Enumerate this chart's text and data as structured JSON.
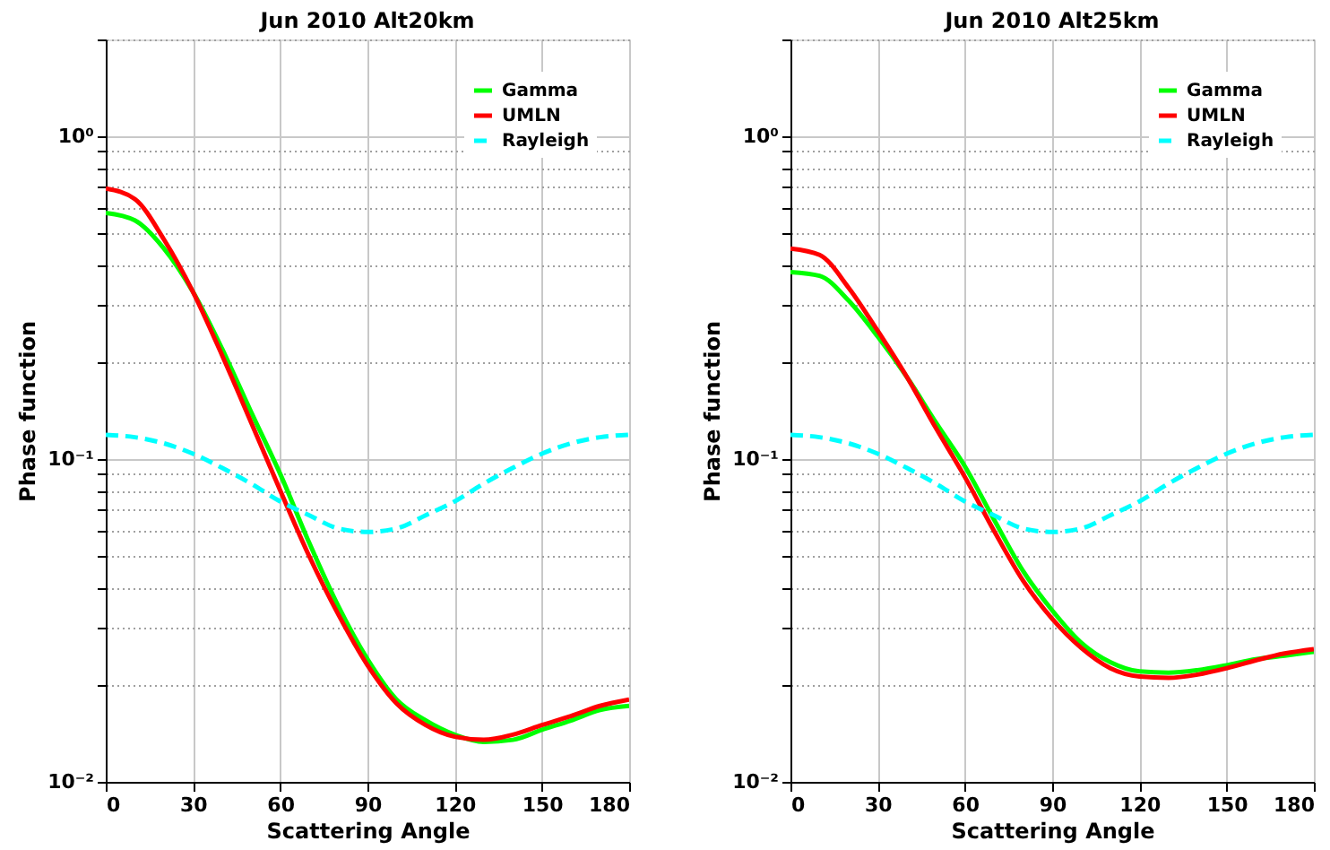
{
  "chart_data": [
    {
      "type": "line",
      "title": "Jun 2010 Alt20km",
      "xlabel": "Scattering Angle",
      "ylabel": "Phase function",
      "log": "y",
      "grid": true,
      "legend": "top right",
      "x": [
        0,
        10,
        20,
        30,
        40,
        50,
        60,
        70,
        80,
        90,
        100,
        110,
        120,
        130,
        140,
        150,
        160,
        170,
        180
      ],
      "xlim": [
        0,
        180
      ],
      "xticks": [
        0,
        30,
        60,
        90,
        120,
        150,
        180
      ],
      "ylim": [
        0.01,
        2
      ],
      "yticks": [
        {
          "value": 0.01,
          "label": "10⁻²"
        },
        {
          "value": 0.02,
          "label": null
        },
        {
          "value": 0.03,
          "label": null
        },
        {
          "value": 0.04,
          "label": null
        },
        {
          "value": 0.05,
          "label": null
        },
        {
          "value": 0.06,
          "label": null
        },
        {
          "value": 0.07,
          "label": null
        },
        {
          "value": 0.08,
          "label": null
        },
        {
          "value": 0.09,
          "label": null
        },
        {
          "value": 0.1,
          "label": "10⁻¹"
        },
        {
          "value": 0.2,
          "label": null
        },
        {
          "value": 0.3,
          "label": null
        },
        {
          "value": 0.4,
          "label": null
        },
        {
          "value": 0.5,
          "label": null
        },
        {
          "value": 0.6,
          "label": null
        },
        {
          "value": 0.7,
          "label": null
        },
        {
          "value": 0.8,
          "label": null
        },
        {
          "value": 0.9,
          "label": null
        },
        {
          "value": 1,
          "label": "10⁰"
        },
        {
          "value": 2,
          "label": null
        }
      ],
      "series": [
        {
          "name": "Gamma",
          "color": "#00ff00",
          "line_style": "solid",
          "values": [
            0.58,
            0.55,
            0.45,
            0.33,
            0.22,
            0.14,
            0.09,
            0.055,
            0.035,
            0.024,
            0.018,
            0.0155,
            0.014,
            0.0133,
            0.0135,
            0.0145,
            0.0155,
            0.0167,
            0.0172
          ]
        },
        {
          "name": "UMLN",
          "color": "#ff0000",
          "line_style": "solid",
          "values": [
            0.69,
            0.64,
            0.48,
            0.33,
            0.21,
            0.13,
            0.08,
            0.05,
            0.033,
            0.023,
            0.0175,
            0.015,
            0.0138,
            0.0135,
            0.014,
            0.015,
            0.016,
            0.0172,
            0.018
          ]
        },
        {
          "name": "Rayleigh",
          "color": "#00ffff",
          "line_style": "dashed",
          "values": [
            0.119,
            0.117,
            0.112,
            0.104,
            0.094,
            0.084,
            0.074,
            0.067,
            0.061,
            0.0595,
            0.061,
            0.067,
            0.074,
            0.084,
            0.094,
            0.104,
            0.112,
            0.117,
            0.119
          ]
        }
      ]
    },
    {
      "type": "line",
      "title": "Jun 2010 Alt25km",
      "xlabel": "Scattering Angle",
      "ylabel": "Phase function",
      "log": "y",
      "grid": true,
      "legend": "top right",
      "x": [
        0,
        10,
        20,
        30,
        40,
        50,
        60,
        70,
        80,
        90,
        100,
        110,
        120,
        130,
        140,
        150,
        160,
        170,
        180
      ],
      "xlim": [
        0,
        180
      ],
      "xticks": [
        0,
        30,
        60,
        90,
        120,
        150,
        180
      ],
      "ylim": [
        0.01,
        2
      ],
      "yticks": [
        {
          "value": 0.01,
          "label": "10⁻²"
        },
        {
          "value": 0.02,
          "label": null
        },
        {
          "value": 0.03,
          "label": null
        },
        {
          "value": 0.04,
          "label": null
        },
        {
          "value": 0.05,
          "label": null
        },
        {
          "value": 0.06,
          "label": null
        },
        {
          "value": 0.07,
          "label": null
        },
        {
          "value": 0.08,
          "label": null
        },
        {
          "value": 0.09,
          "label": null
        },
        {
          "value": 0.1,
          "label": "10⁻¹"
        },
        {
          "value": 0.2,
          "label": null
        },
        {
          "value": 0.3,
          "label": null
        },
        {
          "value": 0.4,
          "label": null
        },
        {
          "value": 0.5,
          "label": null
        },
        {
          "value": 0.6,
          "label": null
        },
        {
          "value": 0.7,
          "label": null
        },
        {
          "value": 0.8,
          "label": null
        },
        {
          "value": 0.9,
          "label": null
        },
        {
          "value": 1,
          "label": "10⁰"
        },
        {
          "value": 2,
          "label": null
        }
      ],
      "series": [
        {
          "name": "Gamma",
          "color": "#00ff00",
          "line_style": "solid",
          "values": [
            0.38,
            0.37,
            0.31,
            0.24,
            0.18,
            0.13,
            0.095,
            0.065,
            0.045,
            0.034,
            0.027,
            0.0235,
            0.022,
            0.0218,
            0.0222,
            0.023,
            0.024,
            0.0246,
            0.0253
          ]
        },
        {
          "name": "UMLN",
          "color": "#ff0000",
          "line_style": "solid",
          "values": [
            0.45,
            0.43,
            0.34,
            0.25,
            0.18,
            0.125,
            0.088,
            0.06,
            0.042,
            0.032,
            0.026,
            0.0225,
            0.0212,
            0.021,
            0.0215,
            0.0225,
            0.0238,
            0.025,
            0.0258
          ]
        },
        {
          "name": "Rayleigh",
          "color": "#00ffff",
          "line_style": "dashed",
          "values": [
            0.119,
            0.117,
            0.112,
            0.104,
            0.094,
            0.084,
            0.074,
            0.067,
            0.061,
            0.0595,
            0.061,
            0.067,
            0.074,
            0.084,
            0.094,
            0.104,
            0.112,
            0.117,
            0.119
          ]
        }
      ]
    }
  ]
}
